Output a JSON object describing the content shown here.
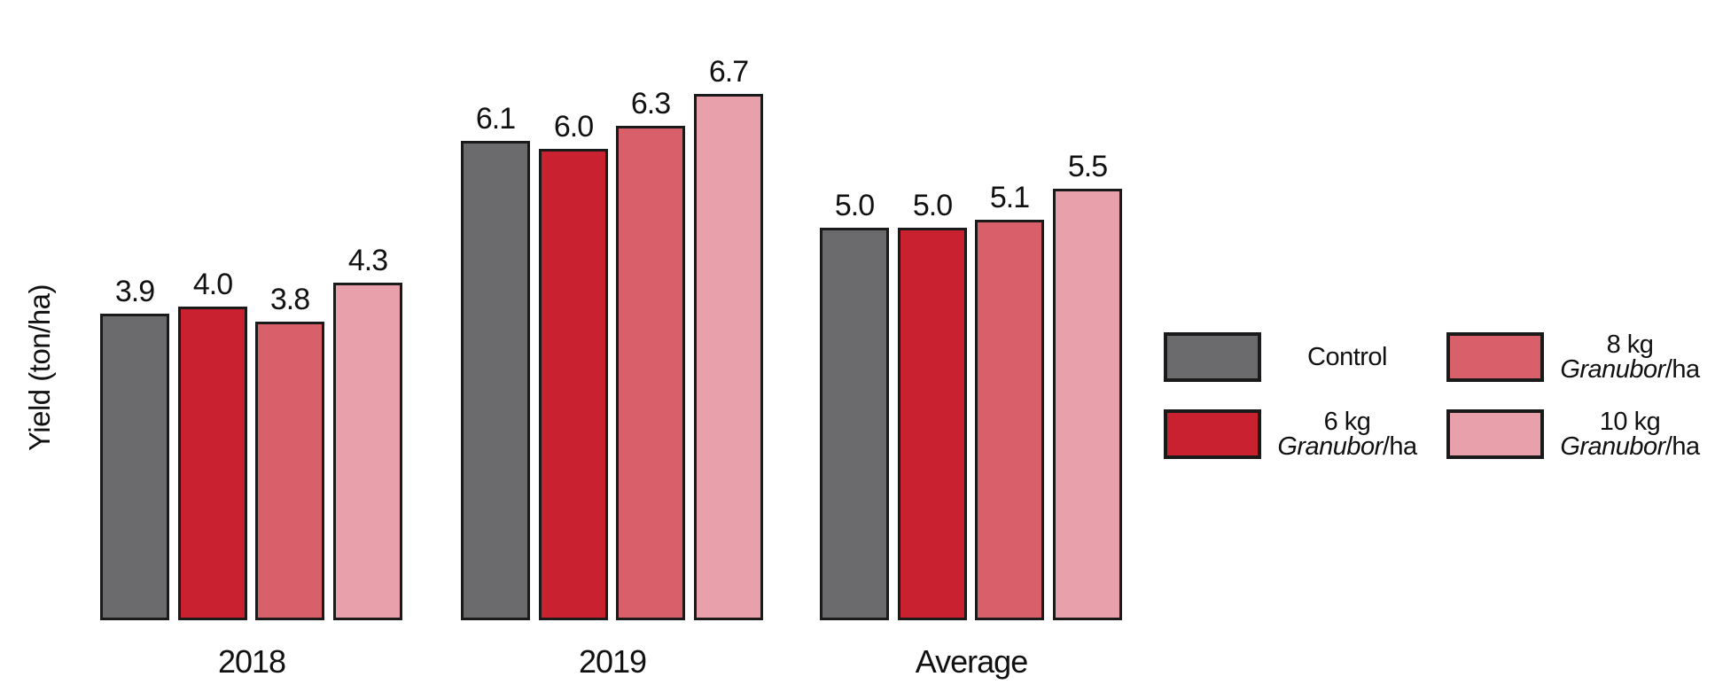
{
  "chart_data": {
    "type": "bar",
    "title": "",
    "xlabel": "",
    "ylabel": "Yield (ton/ha)",
    "categories": [
      "2018",
      "2019",
      "Average"
    ],
    "series": [
      {
        "name": "Control",
        "color": "#6b6a6c",
        "values": [
          3.9,
          6.1,
          5.0
        ]
      },
      {
        "name": "6 kg Granubor/ha",
        "color": "#ca2130",
        "values": [
          4.0,
          6.0,
          5.0
        ]
      },
      {
        "name": "8 kg Granubor/ha",
        "color": "#d9606b",
        "values": [
          3.8,
          6.3,
          5.1
        ]
      },
      {
        "name": "10 kg Granubor/ha",
        "color": "#e8a0ab",
        "values": [
          4.3,
          6.7,
          5.5
        ]
      }
    ],
    "value_label_decimals": 1,
    "ylim": [
      0,
      7.9
    ],
    "grid": false,
    "axis_lines": false,
    "bar_border_color": "#1a1a1a",
    "legend_position": "right"
  },
  "legend": {
    "items": [
      {
        "line1": "Control",
        "brand": "",
        "suffix": ""
      },
      {
        "line1": "6 kg",
        "brand": "Granubor",
        "suffix": "/ha"
      },
      {
        "line1": "8 kg",
        "brand": "Granubor",
        "suffix": "/ha"
      },
      {
        "line1": "10 kg",
        "brand": "Granubor",
        "suffix": "/ha"
      }
    ]
  }
}
